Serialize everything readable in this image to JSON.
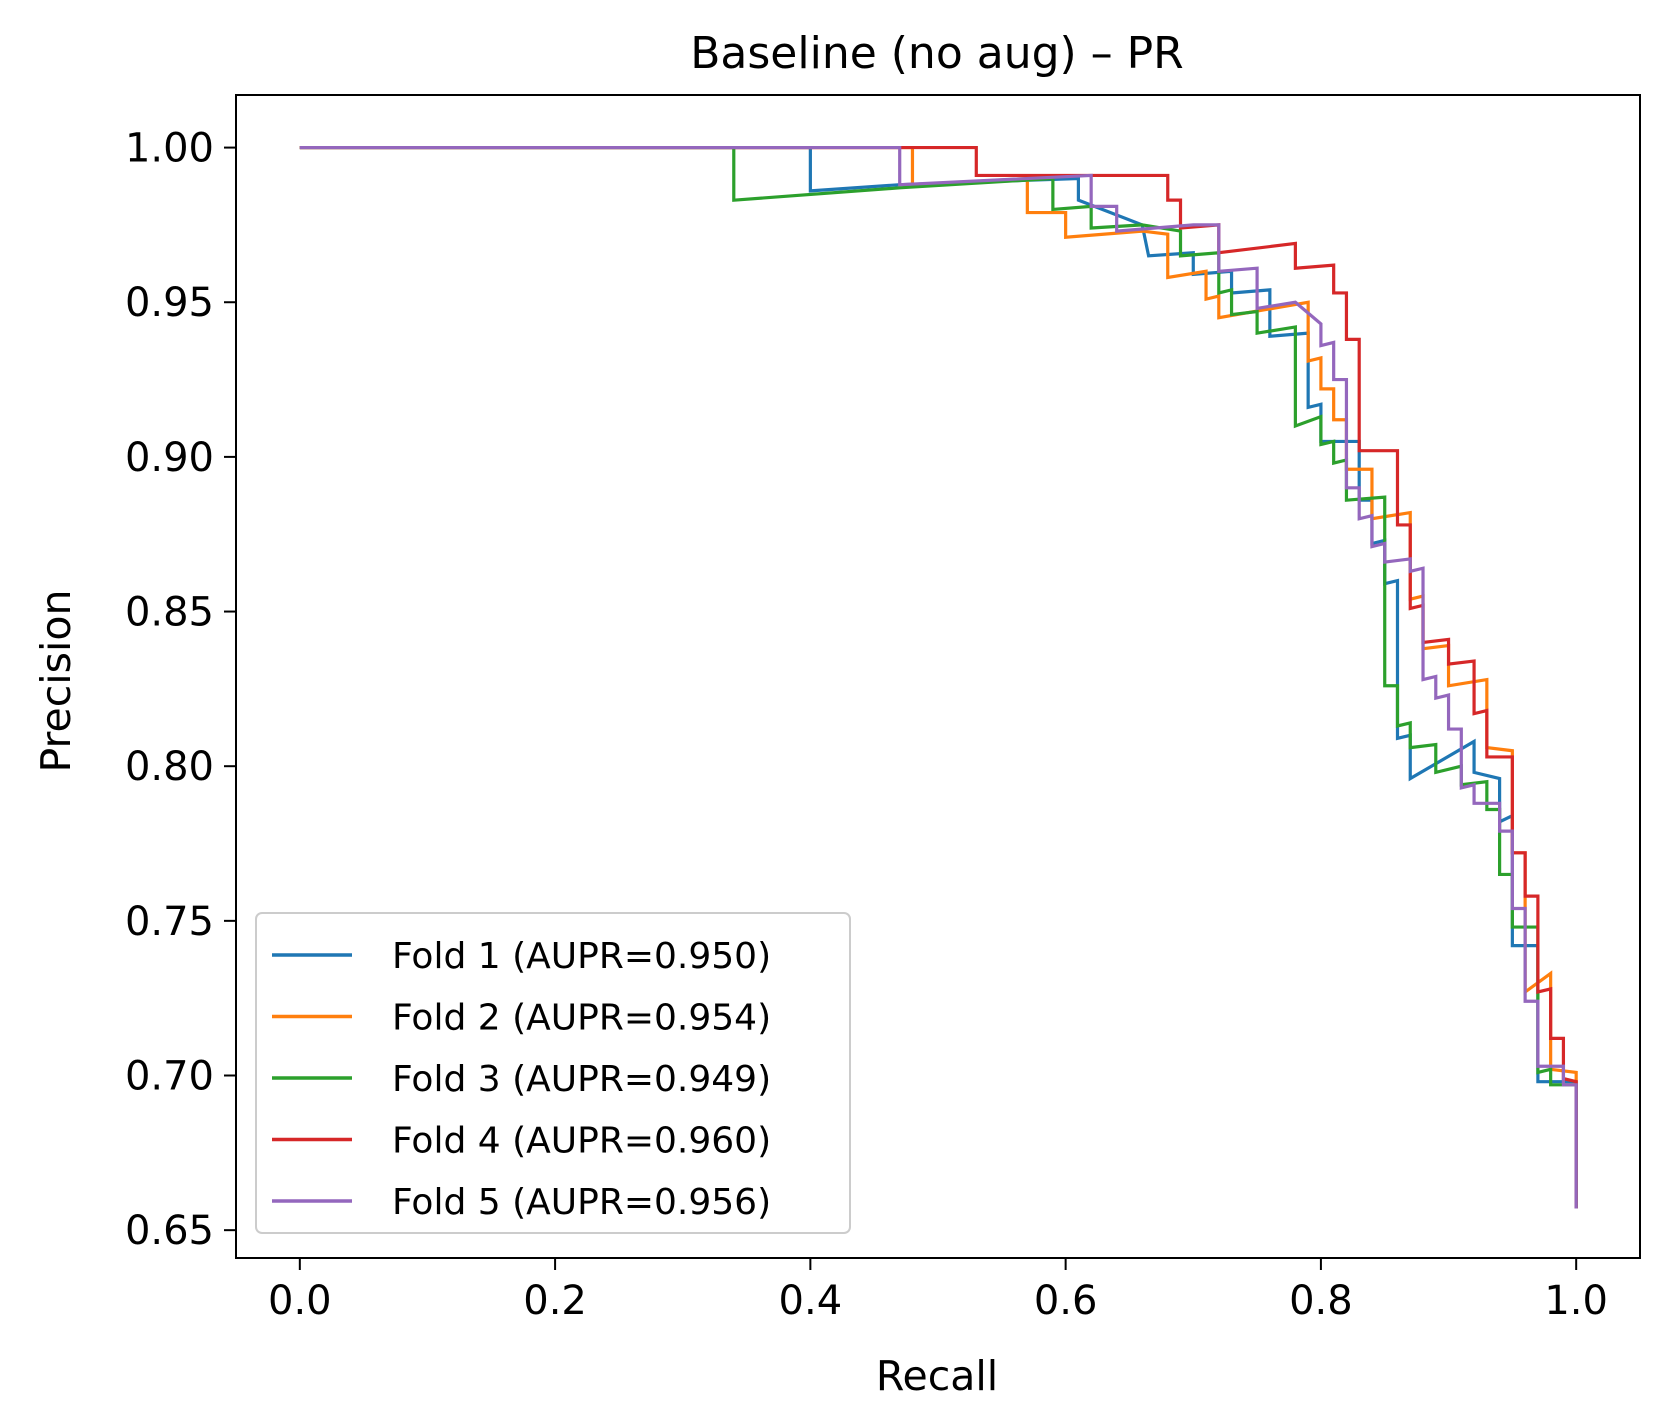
{
  "chart_data": {
    "type": "line",
    "title": "Baseline (no aug) – PR",
    "xlabel": "Recall",
    "ylabel": "Precision",
    "xlim": [
      -0.05,
      1.05
    ],
    "ylim": [
      0.641,
      1.017
    ],
    "xticks": [
      0.0,
      0.2,
      0.4,
      0.6,
      0.8,
      1.0
    ],
    "xtick_labels": [
      "0.0",
      "0.2",
      "0.4",
      "0.6",
      "0.8",
      "1.0"
    ],
    "yticks": [
      0.65,
      0.7,
      0.75,
      0.8,
      0.85,
      0.9,
      0.95,
      1.0
    ],
    "ytick_labels": [
      "0.65",
      "0.70",
      "0.75",
      "0.80",
      "0.85",
      "0.90",
      "0.95",
      "1.00"
    ],
    "grid": false,
    "legend_position": "lower-left",
    "series": [
      {
        "name": "Fold 1 (AUPR=0.950)",
        "color": "#1f77b4",
        "points": [
          [
            0.0,
            1.0
          ],
          [
            0.4,
            1.0
          ],
          [
            0.4,
            0.986
          ],
          [
            0.47,
            0.988
          ],
          [
            0.61,
            0.99
          ],
          [
            0.61,
            0.983
          ],
          [
            0.66,
            0.975
          ],
          [
            0.665,
            0.965
          ],
          [
            0.7,
            0.966
          ],
          [
            0.7,
            0.959
          ],
          [
            0.73,
            0.96
          ],
          [
            0.73,
            0.953
          ],
          [
            0.76,
            0.954
          ],
          [
            0.76,
            0.939
          ],
          [
            0.79,
            0.94
          ],
          [
            0.79,
            0.916
          ],
          [
            0.8,
            0.917
          ],
          [
            0.8,
            0.905
          ],
          [
            0.83,
            0.905
          ],
          [
            0.83,
            0.886
          ],
          [
            0.84,
            0.886
          ],
          [
            0.84,
            0.872
          ],
          [
            0.85,
            0.873
          ],
          [
            0.85,
            0.859
          ],
          [
            0.86,
            0.86
          ],
          [
            0.86,
            0.809
          ],
          [
            0.87,
            0.81
          ],
          [
            0.87,
            0.796
          ],
          [
            0.92,
            0.808
          ],
          [
            0.92,
            0.798
          ],
          [
            0.94,
            0.796
          ],
          [
            0.94,
            0.782
          ],
          [
            0.95,
            0.784
          ],
          [
            0.95,
            0.742
          ],
          [
            0.97,
            0.742
          ],
          [
            0.97,
            0.698
          ],
          [
            1.0,
            0.698
          ],
          [
            1.0,
            0.657
          ]
        ]
      },
      {
        "name": "Fold 2 (AUPR=0.954)",
        "color": "#ff7f0e",
        "points": [
          [
            0.0,
            1.0
          ],
          [
            0.48,
            1.0
          ],
          [
            0.48,
            0.988
          ],
          [
            0.57,
            0.99
          ],
          [
            0.57,
            0.979
          ],
          [
            0.58,
            0.979
          ],
          [
            0.6,
            0.979
          ],
          [
            0.6,
            0.971
          ],
          [
            0.66,
            0.973
          ],
          [
            0.68,
            0.972
          ],
          [
            0.68,
            0.958
          ],
          [
            0.71,
            0.96
          ],
          [
            0.71,
            0.951
          ],
          [
            0.72,
            0.952
          ],
          [
            0.72,
            0.945
          ],
          [
            0.79,
            0.95
          ],
          [
            0.79,
            0.931
          ],
          [
            0.8,
            0.932
          ],
          [
            0.8,
            0.922
          ],
          [
            0.81,
            0.922
          ],
          [
            0.81,
            0.912
          ],
          [
            0.82,
            0.912
          ],
          [
            0.82,
            0.896
          ],
          [
            0.84,
            0.896
          ],
          [
            0.84,
            0.88
          ],
          [
            0.87,
            0.882
          ],
          [
            0.87,
            0.854
          ],
          [
            0.88,
            0.855
          ],
          [
            0.88,
            0.838
          ],
          [
            0.9,
            0.839
          ],
          [
            0.9,
            0.826
          ],
          [
            0.93,
            0.828
          ],
          [
            0.93,
            0.806
          ],
          [
            0.95,
            0.805
          ],
          [
            0.95,
            0.772
          ],
          [
            0.96,
            0.772
          ],
          [
            0.96,
            0.727
          ],
          [
            0.98,
            0.733
          ],
          [
            0.98,
            0.702
          ],
          [
            1.0,
            0.701
          ],
          [
            1.0,
            0.657
          ]
        ]
      },
      {
        "name": "Fold 3 (AUPR=0.949)",
        "color": "#2ca02c",
        "points": [
          [
            0.0,
            1.0
          ],
          [
            0.34,
            1.0
          ],
          [
            0.34,
            0.983
          ],
          [
            0.47,
            0.987
          ],
          [
            0.59,
            0.99
          ],
          [
            0.59,
            0.98
          ],
          [
            0.62,
            0.981
          ],
          [
            0.62,
            0.974
          ],
          [
            0.66,
            0.975
          ],
          [
            0.69,
            0.973
          ],
          [
            0.69,
            0.965
          ],
          [
            0.72,
            0.966
          ],
          [
            0.72,
            0.953
          ],
          [
            0.73,
            0.954
          ],
          [
            0.73,
            0.946
          ],
          [
            0.75,
            0.947
          ],
          [
            0.75,
            0.94
          ],
          [
            0.78,
            0.942
          ],
          [
            0.78,
            0.91
          ],
          [
            0.8,
            0.913
          ],
          [
            0.8,
            0.904
          ],
          [
            0.81,
            0.905
          ],
          [
            0.81,
            0.898
          ],
          [
            0.82,
            0.899
          ],
          [
            0.82,
            0.886
          ],
          [
            0.85,
            0.887
          ],
          [
            0.85,
            0.826
          ],
          [
            0.86,
            0.826
          ],
          [
            0.86,
            0.813
          ],
          [
            0.87,
            0.814
          ],
          [
            0.87,
            0.806
          ],
          [
            0.89,
            0.807
          ],
          [
            0.89,
            0.798
          ],
          [
            0.91,
            0.8
          ],
          [
            0.91,
            0.794
          ],
          [
            0.93,
            0.795
          ],
          [
            0.93,
            0.786
          ],
          [
            0.94,
            0.786
          ],
          [
            0.94,
            0.765
          ],
          [
            0.95,
            0.765
          ],
          [
            0.95,
            0.748
          ],
          [
            0.97,
            0.748
          ],
          [
            0.97,
            0.701
          ],
          [
            0.98,
            0.702
          ],
          [
            0.98,
            0.697
          ],
          [
            1.0,
            0.697
          ],
          [
            1.0,
            0.657
          ]
        ]
      },
      {
        "name": "Fold 4 (AUPR=0.960)",
        "color": "#d62728",
        "points": [
          [
            0.0,
            1.0
          ],
          [
            0.53,
            1.0
          ],
          [
            0.53,
            0.991
          ],
          [
            0.68,
            0.991
          ],
          [
            0.68,
            0.983
          ],
          [
            0.69,
            0.983
          ],
          [
            0.69,
            0.974
          ],
          [
            0.72,
            0.975
          ],
          [
            0.72,
            0.966
          ],
          [
            0.78,
            0.969
          ],
          [
            0.78,
            0.961
          ],
          [
            0.81,
            0.962
          ],
          [
            0.81,
            0.953
          ],
          [
            0.82,
            0.953
          ],
          [
            0.82,
            0.938
          ],
          [
            0.83,
            0.938
          ],
          [
            0.83,
            0.902
          ],
          [
            0.86,
            0.902
          ],
          [
            0.86,
            0.878
          ],
          [
            0.87,
            0.878
          ],
          [
            0.87,
            0.851
          ],
          [
            0.88,
            0.852
          ],
          [
            0.88,
            0.84
          ],
          [
            0.9,
            0.841
          ],
          [
            0.9,
            0.833
          ],
          [
            0.92,
            0.834
          ],
          [
            0.92,
            0.817
          ],
          [
            0.93,
            0.818
          ],
          [
            0.93,
            0.803
          ],
          [
            0.95,
            0.803
          ],
          [
            0.95,
            0.772
          ],
          [
            0.96,
            0.772
          ],
          [
            0.96,
            0.758
          ],
          [
            0.97,
            0.758
          ],
          [
            0.97,
            0.727
          ],
          [
            0.98,
            0.728
          ],
          [
            0.98,
            0.712
          ],
          [
            0.99,
            0.712
          ],
          [
            0.99,
            0.699
          ],
          [
            1.0,
            0.698
          ],
          [
            1.0,
            0.657
          ]
        ]
      },
      {
        "name": "Fold 5 (AUPR=0.956)",
        "color": "#9467bd",
        "points": [
          [
            0.0,
            1.0
          ],
          [
            0.47,
            1.0
          ],
          [
            0.47,
            0.988
          ],
          [
            0.62,
            0.991
          ],
          [
            0.62,
            0.981
          ],
          [
            0.64,
            0.981
          ],
          [
            0.64,
            0.973
          ],
          [
            0.7,
            0.975
          ],
          [
            0.72,
            0.975
          ],
          [
            0.72,
            0.96
          ],
          [
            0.75,
            0.961
          ],
          [
            0.75,
            0.948
          ],
          [
            0.78,
            0.95
          ],
          [
            0.8,
            0.943
          ],
          [
            0.8,
            0.936
          ],
          [
            0.81,
            0.937
          ],
          [
            0.81,
            0.925
          ],
          [
            0.82,
            0.925
          ],
          [
            0.82,
            0.89
          ],
          [
            0.83,
            0.89
          ],
          [
            0.83,
            0.88
          ],
          [
            0.84,
            0.881
          ],
          [
            0.84,
            0.871
          ],
          [
            0.85,
            0.872
          ],
          [
            0.85,
            0.866
          ],
          [
            0.87,
            0.867
          ],
          [
            0.87,
            0.863
          ],
          [
            0.88,
            0.864
          ],
          [
            0.88,
            0.828
          ],
          [
            0.89,
            0.829
          ],
          [
            0.89,
            0.822
          ],
          [
            0.9,
            0.823
          ],
          [
            0.9,
            0.812
          ],
          [
            0.91,
            0.812
          ],
          [
            0.91,
            0.793
          ],
          [
            0.92,
            0.794
          ],
          [
            0.92,
            0.788
          ],
          [
            0.94,
            0.788
          ],
          [
            0.94,
            0.779
          ],
          [
            0.95,
            0.779
          ],
          [
            0.95,
            0.754
          ],
          [
            0.96,
            0.754
          ],
          [
            0.96,
            0.724
          ],
          [
            0.97,
            0.724
          ],
          [
            0.97,
            0.703
          ],
          [
            0.99,
            0.703
          ],
          [
            0.99,
            0.697
          ],
          [
            1.0,
            0.697
          ],
          [
            1.0,
            0.657
          ]
        ]
      }
    ]
  }
}
